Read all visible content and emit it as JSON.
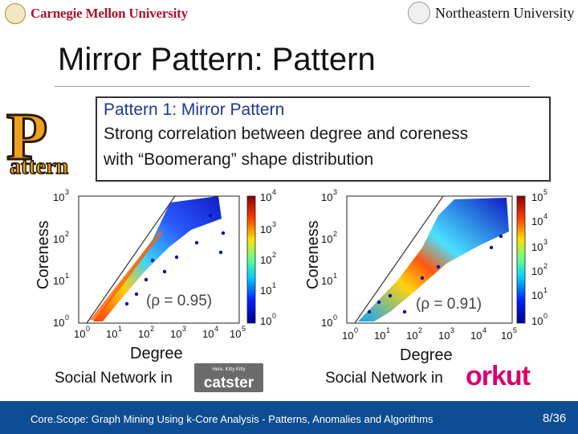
{
  "header": {
    "left_logo_text": "Carnegie Mellon University",
    "right_logo_text": "Northeastern University"
  },
  "slide_title": "Mirror Pattern: Pattern",
  "pattern_logo": {
    "big_letter": "P",
    "word": "attern"
  },
  "callout": {
    "heading": "Pattern 1: Mirror Pattern",
    "line1": "Strong correlation between degree and coreness",
    "line2": "with “Boomerang” shape distribution"
  },
  "left_plot": {
    "ylabel": "Coreness",
    "xlabel": "Degree",
    "rho": "(ρ = 0.95)",
    "colorbar_ticks": [
      "10",
      "10",
      "10",
      "10",
      "10"
    ],
    "colorbar_exps": [
      "4",
      "3",
      "2",
      "1",
      "0"
    ],
    "caption": "Social Network in",
    "brand": "catster",
    "brand_top": "Here, Kitty Kitty"
  },
  "right_plot": {
    "ylabel": "Coreness",
    "xlabel": "Degree",
    "rho": "(ρ = 0.91)",
    "colorbar_exps": [
      "5",
      "4",
      "3",
      "2",
      "1",
      "0"
    ],
    "caption": "Social Network in",
    "brand": "orkut"
  },
  "chart_data": [
    {
      "type": "scatter",
      "title": "",
      "xlabel": "Degree",
      "ylabel": "Coreness",
      "xscale": "log",
      "yscale": "log",
      "xlim": [
        1,
        100000
      ],
      "ylim": [
        1,
        1000
      ],
      "x_ticks": [
        "10",
        "10",
        "10",
        "10",
        "10",
        "10"
      ],
      "x_tick_exps": [
        "0",
        "1",
        "2",
        "3",
        "4",
        "5"
      ],
      "y_ticks": [
        "10",
        "10",
        "10",
        "10"
      ],
      "y_tick_exps": [
        "0",
        "1",
        "2",
        "3"
      ],
      "colorbar_range": [
        1,
        10000
      ],
      "annotation": "(ρ = 0.95)"
    },
    {
      "type": "scatter",
      "title": "",
      "xlabel": "Degree",
      "ylabel": "Coreness",
      "xscale": "log",
      "yscale": "log",
      "xlim": [
        1,
        100000
      ],
      "ylim": [
        1,
        1000
      ],
      "x_ticks": [
        "10",
        "10",
        "10",
        "10",
        "10",
        "10"
      ],
      "x_tick_exps": [
        "0",
        "1",
        "2",
        "3",
        "4",
        "5"
      ],
      "y_ticks": [
        "10",
        "10",
        "10",
        "10"
      ],
      "y_tick_exps": [
        "0",
        "1",
        "2",
        "3"
      ],
      "colorbar_range": [
        1,
        100000
      ],
      "annotation": "(ρ = 0.91)"
    }
  ],
  "footer": {
    "text": "Core.Scope: Graph Mining Using k-Core Analysis - Patterns, Anomalies and Algorithms",
    "page_current": "8",
    "page_total": "/36"
  },
  "colors": {
    "title_blue": "#1f3a8a",
    "footer_blue": "#0d4d94",
    "cmu_red": "#b0102a",
    "orkut_pink": "#d9006c",
    "pattern_orange": "#f0a020"
  }
}
